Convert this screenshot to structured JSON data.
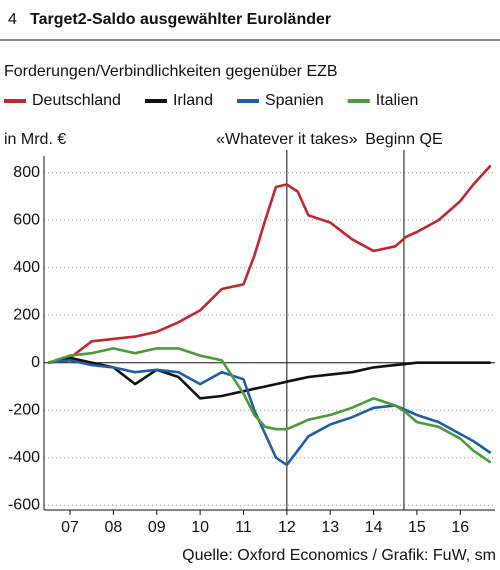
{
  "chart_data": {
    "type": "line",
    "number": "4",
    "title": "Target2-Saldo ausgewählter Euroländer",
    "subtitle": "Forderungen/Verbindlichkeiten gegenüber EZB",
    "ylabel": "in Mrd. €",
    "source": "Quelle: Oxford Economics / Grafik: FuW, sm",
    "x": [
      2007.0,
      2007.5,
      2008.0,
      2008.5,
      2009.0,
      2009.5,
      2010.0,
      2010.5,
      2011.0,
      2011.5,
      2011.75,
      2012.0,
      2012.25,
      2012.5,
      2012.75,
      2013.0,
      2013.5,
      2014.0,
      2014.5,
      2015.0,
      2015.25,
      2015.5,
      2016.0,
      2016.5,
      2016.8,
      2017.2
    ],
    "series": [
      {
        "name": "Deutschland",
        "color": "#c0282d",
        "values": [
          0,
          20,
          90,
          100,
          110,
          130,
          170,
          220,
          310,
          330,
          450,
          600,
          740,
          750,
          720,
          620,
          590,
          520,
          470,
          490,
          530,
          550,
          600,
          680,
          750,
          830
        ]
      },
      {
        "name": "Irland",
        "color": "#111111",
        "values": [
          0,
          20,
          0,
          -20,
          -90,
          -30,
          -60,
          -150,
          -140,
          -120,
          -110,
          -100,
          -90,
          -80,
          -70,
          -60,
          -50,
          -40,
          -20,
          -10,
          -5,
          0,
          0,
          0,
          0,
          0
        ]
      },
      {
        "name": "Spanien",
        "color": "#1f5ea8",
        "values": [
          0,
          10,
          -10,
          -20,
          -40,
          -30,
          -40,
          -90,
          -40,
          -70,
          -200,
          -300,
          -400,
          -430,
          -370,
          -310,
          -260,
          -230,
          -190,
          -180,
          -200,
          -220,
          -250,
          -300,
          -330,
          -380
        ]
      },
      {
        "name": "Italien",
        "color": "#4f9a3a",
        "values": [
          0,
          30,
          40,
          60,
          40,
          60,
          60,
          30,
          10,
          -130,
          -220,
          -270,
          -280,
          -280,
          -260,
          -240,
          -220,
          -190,
          -150,
          -180,
          -210,
          -250,
          -270,
          -320,
          -370,
          -420
        ]
      }
    ],
    "annotations": [
      {
        "x": 2012.5,
        "label": "«Whatever it takes»"
      },
      {
        "x": 2015.2,
        "label": "Beginn QE"
      }
    ],
    "xlim": [
      2006.9,
      2017.3
    ],
    "xticks": [
      {
        "value": 2007.5,
        "label": "07"
      },
      {
        "value": 2008.5,
        "label": "08"
      },
      {
        "value": 2009.5,
        "label": "09"
      },
      {
        "value": 2010.5,
        "label": "10"
      },
      {
        "value": 2011.5,
        "label": "11"
      },
      {
        "value": 2012.5,
        "label": "12"
      },
      {
        "value": 2013.5,
        "label": "13"
      },
      {
        "value": 2014.5,
        "label": "14"
      },
      {
        "value": 2015.5,
        "label": "15"
      },
      {
        "value": 2016.5,
        "label": "16"
      }
    ],
    "ylim": [
      -620,
      870
    ],
    "yticks": [
      -600,
      -400,
      -200,
      0,
      200,
      400,
      600,
      800
    ],
    "grid": true
  }
}
